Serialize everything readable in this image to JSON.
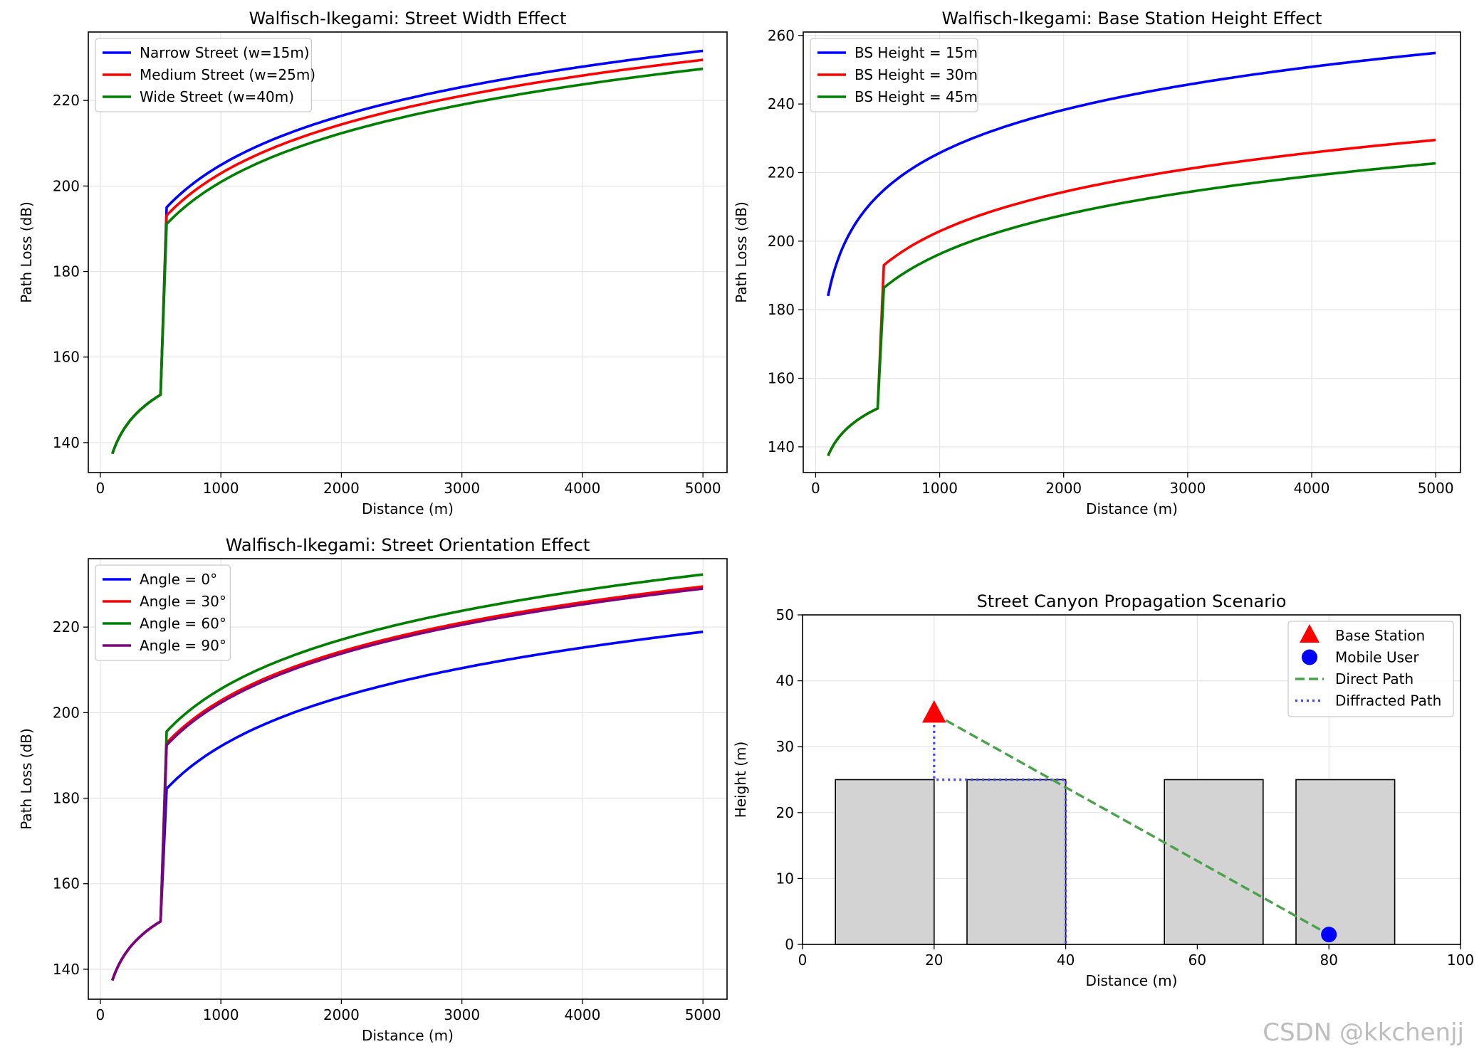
{
  "watermark": "CSDN @kkchenjj",
  "colors": {
    "blue": "#0000ff",
    "red": "#ff0000",
    "green": "#008000",
    "purple": "#800080",
    "grid": "#e6e6e6",
    "building": "#d3d3d3",
    "direct": "#4aa24a",
    "diffracted": "#4a4aff",
    "watermark": "#bdbdbd"
  },
  "chart_data": [
    {
      "type": "line",
      "title": "Walfisch-Ikegami: Street Width Effect",
      "xlabel": "Distance (m)",
      "ylabel": "Path Loss (dB)",
      "xlim": [
        -100,
        5200
      ],
      "ylim": [
        133,
        236
      ],
      "xticks": [
        0,
        1000,
        2000,
        3000,
        4000,
        5000
      ],
      "yticks": [
        140,
        160,
        180,
        200,
        220
      ],
      "legend_position": "top-left",
      "series": [
        {
          "name": "Narrow Street (w=15m)",
          "color": "#0000ff",
          "params": {
            "p500": 151.2,
            "p550": 195.0,
            "p5000": 231.6
          }
        },
        {
          "name": "Medium Street (w=25m)",
          "color": "#ff0000",
          "params": {
            "p500": 151.2,
            "p550": 193.1,
            "p5000": 229.5
          }
        },
        {
          "name": "Wide Street (w=40m)",
          "color": "#008000",
          "params": {
            "p500": 151.2,
            "p550": 191.1,
            "p5000": 227.4
          }
        }
      ]
    },
    {
      "type": "line",
      "title": "Walfisch-Ikegami: Base Station Height Effect",
      "xlabel": "Distance (m)",
      "ylabel": "Path Loss (dB)",
      "xlim": [
        -100,
        5200
      ],
      "ylim": [
        132.5,
        261
      ],
      "xticks": [
        0,
        1000,
        2000,
        3000,
        4000,
        5000
      ],
      "yticks": [
        140,
        160,
        180,
        200,
        220,
        240,
        260
      ],
      "legend_position": "top-left",
      "series": [
        {
          "name": "BS Height = 15m",
          "color": "#0000ff",
          "params": {
            "continuous": true,
            "p100": 184.0,
            "p5000": 254.9
          }
        },
        {
          "name": "BS Height = 30m",
          "color": "#ff0000",
          "params": {
            "p500": 151.2,
            "p550": 193.0,
            "p5000": 229.5
          }
        },
        {
          "name": "BS Height = 45m",
          "color": "#008000",
          "params": {
            "p500": 151.2,
            "p550": 186.4,
            "p5000": 222.7
          }
        }
      ]
    },
    {
      "type": "line",
      "title": "Walfisch-Ikegami: Street Orientation Effect",
      "xlabel": "Distance (m)",
      "ylabel": "Path Loss (dB)",
      "xlim": [
        -100,
        5200
      ],
      "ylim": [
        133,
        236
      ],
      "xticks": [
        0,
        1000,
        2000,
        3000,
        4000,
        5000
      ],
      "yticks": [
        140,
        160,
        180,
        200,
        220
      ],
      "legend_position": "top-left",
      "series": [
        {
          "name": "Angle = 0°",
          "color": "#0000ff",
          "params": {
            "p500": 151.2,
            "p550": 182.2,
            "p5000": 218.9
          }
        },
        {
          "name": "Angle = 30°",
          "color": "#ff0000",
          "params": {
            "p500": 151.2,
            "p550": 192.9,
            "p5000": 229.5
          }
        },
        {
          "name": "Angle = 60°",
          "color": "#008000",
          "params": {
            "p500": 151.2,
            "p550": 195.6,
            "p5000": 232.3
          }
        },
        {
          "name": "Angle = 90°",
          "color": "#800080",
          "params": {
            "p500": 151.2,
            "p550": 192.4,
            "p5000": 229.0
          }
        }
      ]
    },
    {
      "type": "scatter",
      "title": "Street Canyon Propagation Scenario",
      "xlabel": "Distance (m)",
      "ylabel": "Height (m)",
      "xlim": [
        0,
        100
      ],
      "ylim": [
        0,
        50
      ],
      "xticks": [
        0,
        20,
        40,
        60,
        80,
        100
      ],
      "yticks": [
        0,
        10,
        20,
        30,
        40,
        50
      ],
      "legend_position": "top-right",
      "buildings": [
        {
          "x0": 5,
          "x1": 20,
          "height": 25
        },
        {
          "x0": 25,
          "x1": 40,
          "height": 25
        },
        {
          "x0": 55,
          "x1": 70,
          "height": 25
        },
        {
          "x0": 75,
          "x1": 90,
          "height": 25
        }
      ],
      "base_station": {
        "name": "Base Station",
        "x": 20,
        "y": 35
      },
      "mobile_user": {
        "name": "Mobile User",
        "x": 80,
        "y": 1.5
      },
      "direct_path": {
        "name": "Direct Path",
        "points": [
          [
            20,
            35
          ],
          [
            80,
            1.5
          ]
        ]
      },
      "diffracted_path": {
        "name": "Diffracted Path",
        "points": [
          [
            20,
            35
          ],
          [
            20,
            25
          ],
          [
            40,
            25
          ],
          [
            40,
            0
          ]
        ]
      },
      "legend": [
        "Base Station",
        "Mobile User",
        "Direct Path",
        "Diffracted Path"
      ]
    }
  ]
}
